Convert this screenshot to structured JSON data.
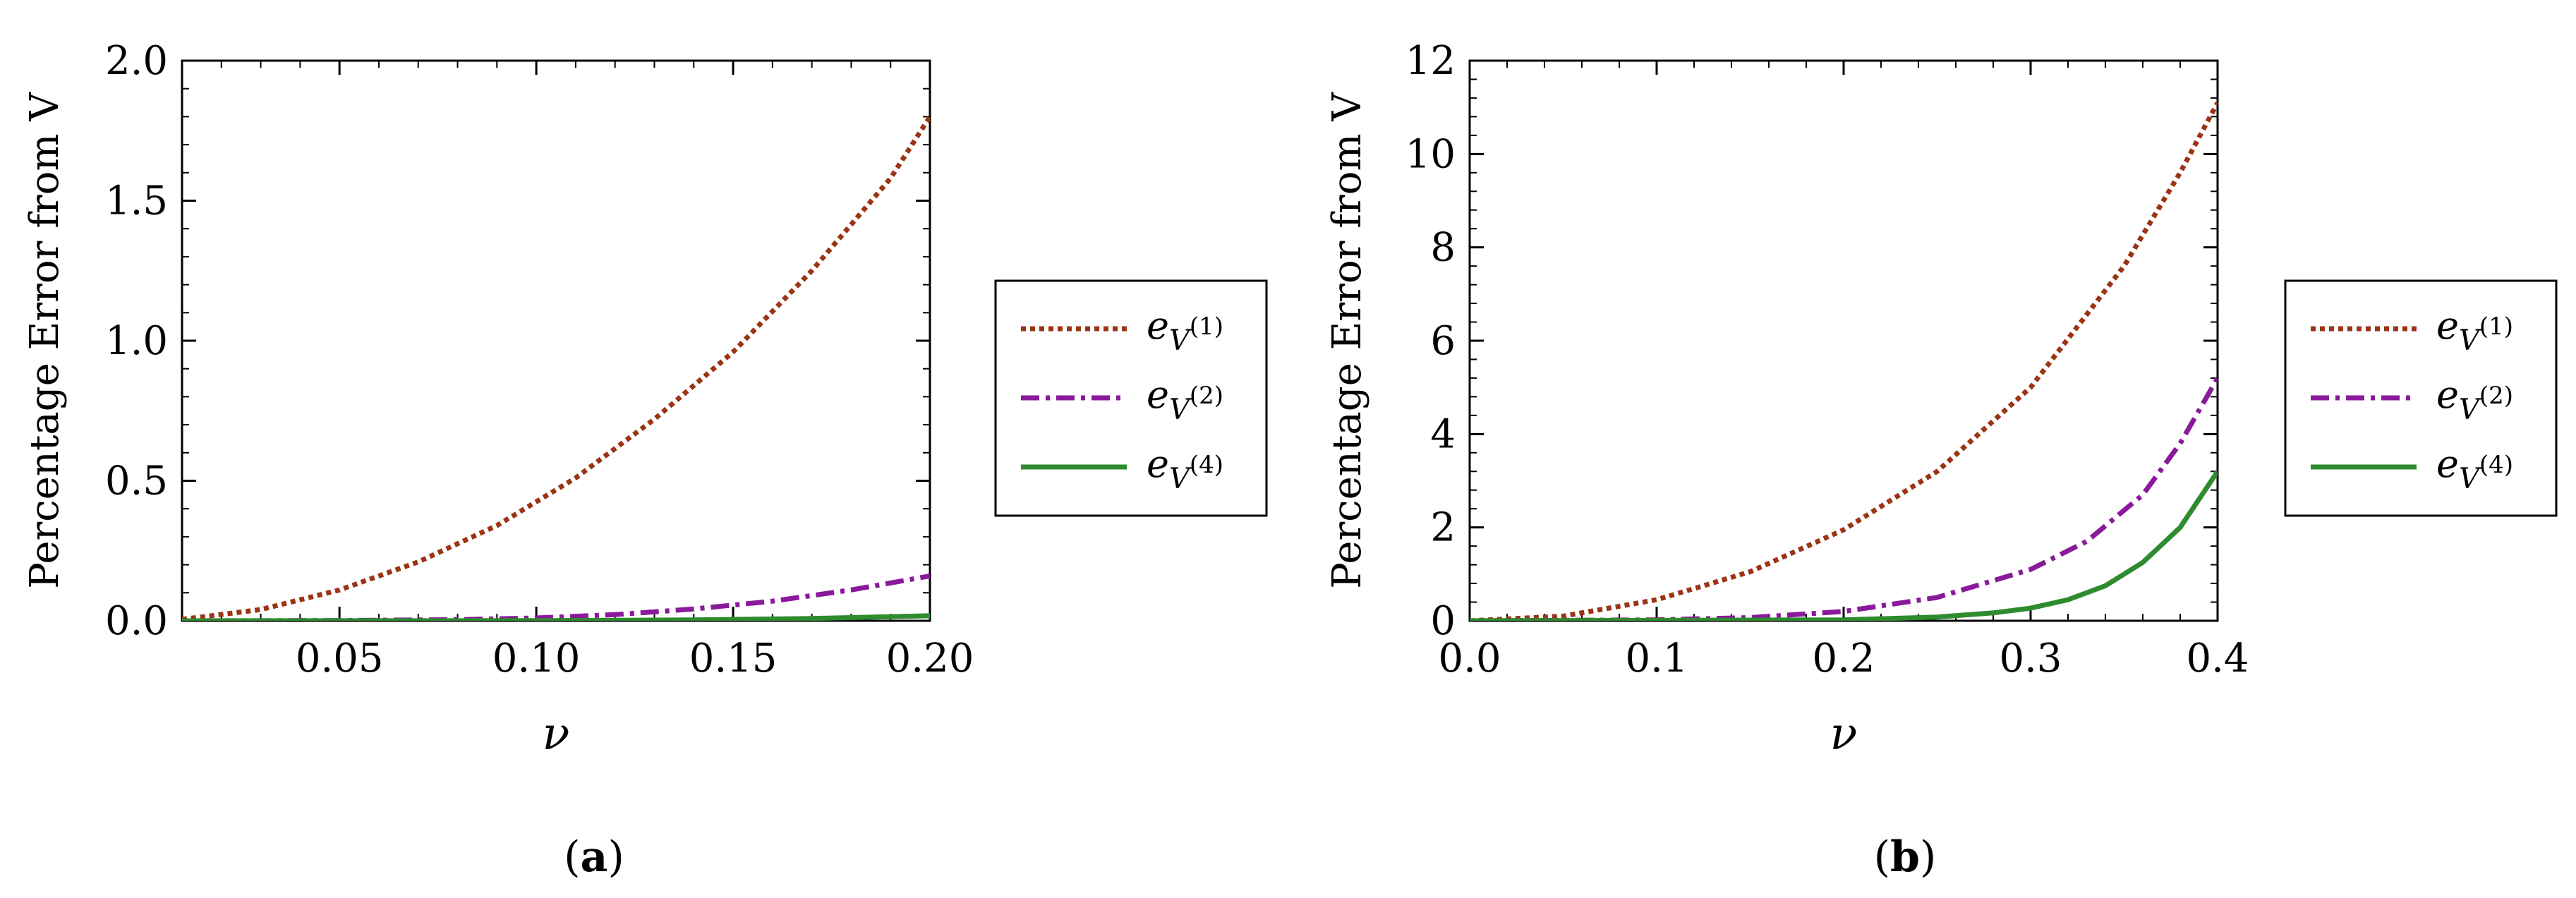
{
  "chart_data": [
    {
      "type": "line",
      "caption": "(a)",
      "caption_letter": "a",
      "xlabel": "ν",
      "ylabel": "Percentage Error from V",
      "xlim": [
        0.01,
        0.2
      ],
      "ylim": [
        0,
        2.0
      ],
      "xticks": [
        0.05,
        0.1,
        0.15,
        0.2
      ],
      "xtick_labels": [
        "0.05",
        "0.10",
        "0.15",
        "0.20"
      ],
      "yticks": [
        0,
        0.5,
        1.0,
        1.5,
        2.0
      ],
      "ytick_labels": [
        "0.0",
        "0.5",
        "1.0",
        "1.5",
        "2.0"
      ],
      "series": [
        {
          "name": "e_V(1)",
          "label_base": "e",
          "label_sub": "V",
          "label_sup": "(1)",
          "color": "#9b3414",
          "style": "dotted",
          "x": [
            0.01,
            0.03,
            0.05,
            0.07,
            0.09,
            0.11,
            0.13,
            0.15,
            0.17,
            0.19,
            0.2
          ],
          "y": [
            0.005,
            0.04,
            0.11,
            0.21,
            0.34,
            0.51,
            0.72,
            0.96,
            1.25,
            1.58,
            1.8
          ]
        },
        {
          "name": "e_V(2)",
          "label_base": "e",
          "label_sub": "V",
          "label_sup": "(2)",
          "color": "#8a1a9b",
          "style": "dashdot",
          "x": [
            0.01,
            0.05,
            0.08,
            0.1,
            0.12,
            0.14,
            0.16,
            0.18,
            0.2
          ],
          "y": [
            0.0,
            0.001,
            0.004,
            0.01,
            0.022,
            0.042,
            0.07,
            0.11,
            0.16
          ]
        },
        {
          "name": "e_V(4)",
          "label_base": "e",
          "label_sub": "V",
          "label_sup": "(4)",
          "color": "#2e8b2e",
          "style": "solid",
          "x": [
            0.01,
            0.1,
            0.14,
            0.17,
            0.2
          ],
          "y": [
            0.0,
            0.0005,
            0.003,
            0.008,
            0.018
          ]
        }
      ]
    },
    {
      "type": "line",
      "caption": "(b)",
      "caption_letter": "b",
      "xlabel": "ν",
      "ylabel": "Percentage Error from V",
      "xlim": [
        0.0,
        0.4
      ],
      "ylim": [
        0,
        12
      ],
      "xticks": [
        0.0,
        0.1,
        0.2,
        0.3,
        0.4
      ],
      "xtick_labels": [
        "0.0",
        "0.1",
        "0.2",
        "0.3",
        "0.4"
      ],
      "yticks": [
        0,
        2,
        4,
        6,
        8,
        10,
        12
      ],
      "ytick_labels": [
        "0",
        "2",
        "4",
        "6",
        "8",
        "10",
        "12"
      ],
      "series": [
        {
          "name": "e_V(1)",
          "label_base": "e",
          "label_sub": "V",
          "label_sup": "(1)",
          "color": "#9b3414",
          "style": "dotted",
          "x": [
            0.0,
            0.05,
            0.1,
            0.15,
            0.2,
            0.25,
            0.3,
            0.35,
            0.38,
            0.4
          ],
          "y": [
            0.0,
            0.1,
            0.45,
            1.05,
            1.95,
            3.2,
            5.0,
            7.6,
            9.6,
            11.1
          ]
        },
        {
          "name": "e_V(2)",
          "label_base": "e",
          "label_sub": "V",
          "label_sup": "(2)",
          "color": "#8a1a9b",
          "style": "dashdot",
          "x": [
            0.0,
            0.1,
            0.15,
            0.2,
            0.25,
            0.3,
            0.33,
            0.36,
            0.38,
            0.4
          ],
          "y": [
            0.0,
            0.02,
            0.07,
            0.2,
            0.5,
            1.1,
            1.7,
            2.7,
            3.8,
            5.2
          ]
        },
        {
          "name": "e_V(4)",
          "label_base": "e",
          "label_sub": "V",
          "label_sup": "(4)",
          "color": "#2e8b2e",
          "style": "solid",
          "x": [
            0.0,
            0.2,
            0.25,
            0.28,
            0.3,
            0.32,
            0.34,
            0.36,
            0.38,
            0.4
          ],
          "y": [
            0.0,
            0.02,
            0.08,
            0.17,
            0.27,
            0.45,
            0.75,
            1.25,
            2.0,
            3.2
          ]
        }
      ]
    }
  ]
}
